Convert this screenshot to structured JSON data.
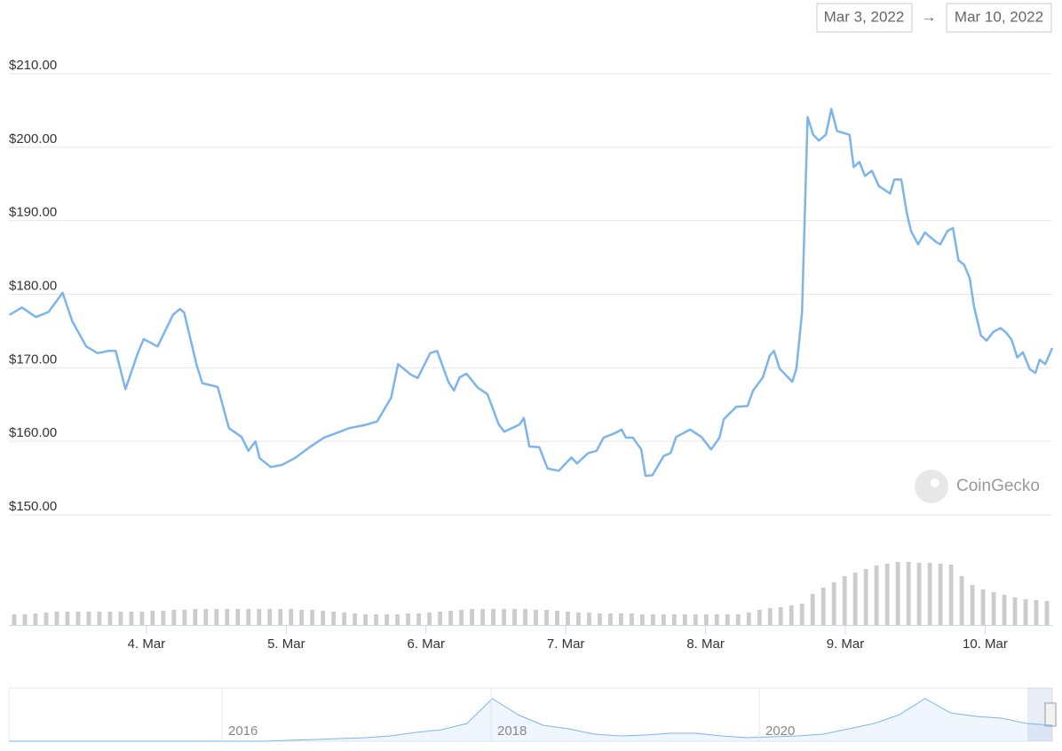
{
  "chart_data": {
    "type": "line",
    "date_from": "Mar 3, 2022",
    "date_arrow": "→",
    "date_to": "Mar 10, 2022",
    "watermark": "CoinGecko",
    "xlim": [
      3.016,
      10.48
    ],
    "xticks": [
      {
        "value": 4,
        "label": "4. Mar"
      },
      {
        "value": 5,
        "label": "5. Mar"
      },
      {
        "value": 6,
        "label": "6. Mar"
      },
      {
        "value": 7,
        "label": "7. Mar"
      },
      {
        "value": 8,
        "label": "8. Mar"
      },
      {
        "value": 9,
        "label": "9. Mar"
      },
      {
        "value": 10,
        "label": "10. Mar"
      }
    ],
    "ylim": [
      150,
      210
    ],
    "yticks": [
      {
        "value": 150,
        "label": "$150.00"
      },
      {
        "value": 160,
        "label": "$160.00"
      },
      {
        "value": 170,
        "label": "$170.00"
      },
      {
        "value": 180,
        "label": "$180.00"
      },
      {
        "value": 190,
        "label": "$190.00"
      },
      {
        "value": 200,
        "label": "$200.00"
      },
      {
        "value": 210,
        "label": "$210.00"
      }
    ],
    "grid": true,
    "color": "#7cb5ec",
    "x": [
      3.02,
      3.11,
      3.21,
      3.3,
      3.4,
      3.47,
      3.57,
      3.65,
      3.73,
      3.78,
      3.85,
      3.94,
      3.98,
      4.08,
      4.19,
      4.24,
      4.27,
      4.36,
      4.4,
      4.51,
      4.59,
      4.68,
      4.73,
      4.78,
      4.81,
      4.89,
      4.97,
      5.06,
      5.16,
      5.27,
      5.37,
      5.45,
      5.56,
      5.65,
      5.75,
      5.8,
      5.89,
      5.94,
      6.03,
      6.08,
      6.16,
      6.2,
      6.24,
      6.29,
      6.37,
      6.44,
      6.52,
      6.56,
      6.67,
      6.7,
      6.74,
      6.81,
      6.87,
      6.95,
      7.04,
      7.08,
      7.16,
      7.22,
      7.27,
      7.35,
      7.4,
      7.43,
      7.48,
      7.54,
      7.57,
      7.62,
      7.7,
      7.75,
      7.79,
      7.89,
      7.97,
      8.04,
      8.1,
      8.13,
      8.22,
      8.3,
      8.34,
      8.41,
      8.46,
      8.49,
      8.53,
      8.62,
      8.65,
      8.69,
      8.73,
      8.77,
      8.81,
      8.86,
      8.9,
      8.94,
      9.03,
      9.06,
      9.1,
      9.14,
      9.19,
      9.24,
      9.32,
      9.35,
      9.4,
      9.44,
      9.47,
      9.52,
      9.57,
      9.65,
      9.68,
      9.73,
      9.77,
      9.81,
      9.85,
      9.89,
      9.92,
      9.97,
      10.01,
      10.06,
      10.11,
      10.15,
      10.19,
      10.23,
      10.27,
      10.32,
      10.36,
      10.39,
      10.43,
      10.48
    ],
    "values": [
      177.2,
      178.2,
      176.9,
      177.6,
      180.2,
      176.3,
      172.9,
      172.0,
      172.3,
      172.3,
      167.1,
      172.1,
      173.9,
      172.9,
      177.2,
      178.0,
      177.5,
      170.3,
      167.9,
      167.4,
      161.8,
      160.6,
      158.7,
      160.0,
      157.7,
      156.5,
      156.8,
      157.7,
      159.1,
      160.5,
      161.2,
      161.8,
      162.2,
      162.7,
      165.9,
      170.5,
      169.1,
      168.6,
      172.0,
      172.3,
      168.1,
      166.9,
      168.7,
      169.2,
      167.3,
      166.4,
      162.3,
      161.3,
      162.3,
      163.2,
      159.3,
      159.2,
      156.3,
      156.0,
      157.8,
      157.0,
      158.4,
      158.7,
      160.5,
      161.1,
      161.6,
      160.5,
      160.5,
      158.9,
      155.3,
      155.4,
      158.0,
      158.4,
      160.6,
      161.6,
      160.6,
      158.9,
      160.5,
      163.0,
      164.7,
      164.8,
      166.9,
      168.7,
      171.7,
      172.3,
      169.9,
      168.1,
      169.9,
      177.5,
      204.1,
      201.7,
      200.9,
      201.7,
      205.2,
      202.2,
      201.7,
      197.3,
      198.0,
      196.1,
      196.8,
      194.7,
      193.7,
      195.6,
      195.6,
      191.0,
      188.6,
      186.8,
      188.4,
      187.1,
      186.8,
      188.6,
      189.0,
      184.6,
      184.0,
      182.2,
      178.4,
      174.4,
      173.7,
      174.9,
      175.4,
      174.8,
      173.8,
      171.4,
      172.1,
      169.8,
      169.3,
      171.1,
      170.5,
      172.7
    ],
    "volume": {
      "color": "#cccccc",
      "ylim": [
        0,
        100
      ],
      "values": [
        12,
        12,
        13,
        14,
        15,
        15,
        15,
        15,
        15,
        15,
        15,
        15,
        15,
        16,
        16,
        17,
        17,
        18,
        18,
        18,
        18,
        18,
        18,
        18,
        18,
        18,
        18,
        17,
        17,
        16,
        15,
        14,
        13,
        12,
        12,
        12,
        12,
        13,
        13,
        14,
        15,
        16,
        17,
        18,
        18,
        18,
        18,
        18,
        18,
        17,
        17,
        16,
        15,
        14,
        14,
        13,
        13,
        13,
        13,
        12,
        12,
        12,
        12,
        12,
        12,
        12,
        12,
        12,
        12,
        14,
        17,
        19,
        20,
        22,
        24,
        35,
        42,
        48,
        55,
        59,
        63,
        67,
        69,
        71,
        71,
        70,
        70,
        69,
        68,
        55,
        45,
        40,
        37,
        34,
        31,
        29,
        28,
        27
      ]
    },
    "navigator": {
      "color": "#7cb5ec",
      "ylim": [
        0,
        60
      ],
      "labels": [
        "2016",
        "2018",
        "2020"
      ],
      "values": [
        0,
        0,
        0,
        0,
        0,
        0,
        0,
        0,
        0,
        0,
        0,
        1,
        2,
        3,
        4,
        6,
        10,
        13,
        20,
        48,
        30,
        18,
        14,
        8,
        6,
        7,
        9,
        9,
        6,
        4,
        5,
        6,
        8,
        14,
        20,
        30,
        48,
        32,
        28,
        26,
        20,
        18
      ]
    }
  }
}
